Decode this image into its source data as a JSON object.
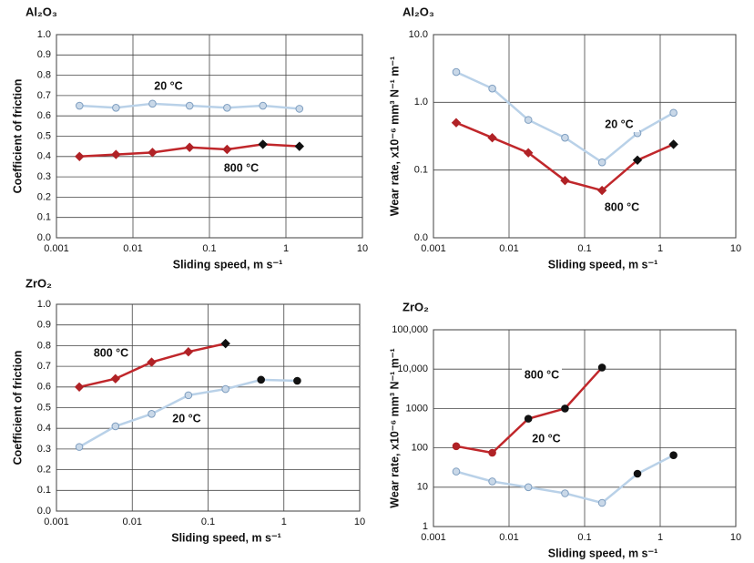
{
  "chart_data": [
    {
      "type": "line",
      "title": "Al₂O₃",
      "xlabel": "Sliding speed, m s⁻¹",
      "ylabel": "Coefficient of friction",
      "xlog": true,
      "ylog": false,
      "grid": true,
      "xlim": [
        0.001,
        10
      ],
      "xticks": [
        0.001,
        0.01,
        0.1,
        1,
        10
      ],
      "ylim": [
        0,
        1
      ],
      "yticks": [
        {
          "value": 0,
          "label": "0.0"
        },
        0.1,
        0.2,
        0.3,
        0.4,
        0.5,
        0.6,
        0.7,
        0.8,
        0.9,
        {
          "value": 1,
          "label": "1.0"
        }
      ],
      "series": [
        {
          "name": "20 °C",
          "color": "#b9d1e8",
          "marker": "circle",
          "x": [
            0.002,
            0.006,
            0.018,
            0.055,
            0.17,
            0.5,
            1.5
          ],
          "values": [
            0.65,
            0.64,
            0.66,
            0.65,
            0.64,
            0.65,
            0.635
          ],
          "marker_colors": [
            "#c9d8e8",
            "#c9d8e8",
            "#c9d8e8",
            "#c9d8e8",
            "#c9d8e8",
            "#c9d8e8",
            "#c9d8e8"
          ]
        },
        {
          "name": "800 °C",
          "color": "#c0272b",
          "marker": "diamond",
          "x": [
            0.002,
            0.006,
            0.018,
            0.055,
            0.17,
            0.5,
            1.5
          ],
          "values": [
            0.4,
            0.41,
            0.42,
            0.445,
            0.435,
            0.46,
            0.45
          ],
          "marker_colors": [
            "#b02226",
            "#b02226",
            "#b02226",
            "#b02226",
            "#b02226",
            "#111111",
            "#111111"
          ]
        }
      ]
    },
    {
      "type": "line",
      "title": "Al₂O₃",
      "xlabel": "Sliding speed, m s⁻¹",
      "ylabel": "Wear rate, x10⁻⁶ mm³ N⁻¹ m⁻¹",
      "xlog": true,
      "ylog": true,
      "grid": true,
      "xlim": [
        0.001,
        10
      ],
      "xticks": [
        0.001,
        0.01,
        0.1,
        1,
        10
      ],
      "ylim": [
        0.01,
        10
      ],
      "yticks": [
        {
          "value": 0.01,
          "label": "0.0"
        },
        0.1,
        {
          "value": 1,
          "label": "1.0"
        },
        {
          "value": 10,
          "label": "10.0"
        }
      ],
      "series": [
        {
          "name": "20 °C",
          "color": "#b9d1e8",
          "marker": "circle",
          "x": [
            0.002,
            0.006,
            0.018,
            0.055,
            0.17,
            0.5,
            1.5
          ],
          "values": [
            2.8,
            1.6,
            0.55,
            0.3,
            0.13,
            0.35,
            0.7
          ],
          "marker_colors": [
            "#c9d8e8",
            "#c9d8e8",
            "#c9d8e8",
            "#c9d8e8",
            "#c9d8e8",
            "#c9d8e8",
            "#c9d8e8"
          ]
        },
        {
          "name": "800 °C",
          "color": "#c0272b",
          "marker": "diamond",
          "x": [
            0.002,
            0.006,
            0.018,
            0.055,
            0.17,
            0.5,
            1.5
          ],
          "values": [
            0.5,
            0.3,
            0.18,
            0.07,
            0.05,
            0.14,
            0.24
          ],
          "marker_colors": [
            "#b02226",
            "#b02226",
            "#b02226",
            "#b02226",
            "#b02226",
            "#111111",
            "#111111"
          ]
        }
      ]
    },
    {
      "type": "line",
      "title": "ZrO₂",
      "xlabel": "Sliding speed, m s⁻¹",
      "ylabel": "Coefficient of friction",
      "xlog": true,
      "ylog": false,
      "grid": true,
      "xlim": [
        0.001,
        10
      ],
      "xticks": [
        0.001,
        0.01,
        0.1,
        1,
        10
      ],
      "ylim": [
        0,
        1
      ],
      "yticks": [
        {
          "value": 0,
          "label": "0.0"
        },
        0.1,
        0.2,
        0.3,
        0.4,
        0.5,
        0.6,
        0.7,
        0.8,
        0.9,
        {
          "value": 1,
          "label": "1.0"
        }
      ],
      "series": [
        {
          "name": "800 °C",
          "color": "#c0272b",
          "marker": "diamond",
          "x": [
            0.002,
            0.006,
            0.018,
            0.055,
            0.17
          ],
          "values": [
            0.6,
            0.64,
            0.72,
            0.77,
            0.81
          ],
          "marker_colors": [
            "#b02226",
            "#b02226",
            "#b02226",
            "#b02226",
            "#111111"
          ]
        },
        {
          "name": "20 °C",
          "color": "#b9d1e8",
          "marker": "circle",
          "x": [
            0.002,
            0.006,
            0.018,
            0.055,
            0.17,
            0.5,
            1.5
          ],
          "values": [
            0.31,
            0.41,
            0.47,
            0.56,
            0.59,
            0.635,
            0.63
          ],
          "marker_colors": [
            "#c9d8e8",
            "#c9d8e8",
            "#c9d8e8",
            "#c9d8e8",
            "#c9d8e8",
            "#111111",
            "#111111"
          ]
        }
      ]
    },
    {
      "type": "line",
      "title": "ZrO₂",
      "xlabel": "Sliding speed, m s⁻¹",
      "ylabel": "Wear rate, x10⁻⁶ mm³ N⁻¹ m⁻¹",
      "xlog": true,
      "ylog": true,
      "grid": true,
      "xlim": [
        0.001,
        10
      ],
      "xticks": [
        0.001,
        0.01,
        0.1,
        1,
        10
      ],
      "ylim": [
        1,
        100000
      ],
      "yticks": [
        1,
        10,
        100,
        1000,
        {
          "value": 10000,
          "label": "10,000"
        },
        {
          "value": 100000,
          "label": "100,000"
        }
      ],
      "series": [
        {
          "name": "800 °C",
          "color": "#c0272b",
          "marker": "circle",
          "x": [
            0.002,
            0.006,
            0.018,
            0.055,
            0.17
          ],
          "values": [
            110,
            75,
            550,
            1000,
            11000
          ],
          "marker_colors": [
            "#b02226",
            "#b02226",
            "#111111",
            "#111111",
            "#111111"
          ]
        },
        {
          "name": "20 °C",
          "color": "#b9d1e8",
          "marker": "circle",
          "x": [
            0.002,
            0.006,
            0.018,
            0.055,
            0.17,
            0.5,
            1.5
          ],
          "values": [
            25,
            14,
            10,
            7,
            4,
            22,
            65
          ],
          "marker_colors": [
            "#c9d8e8",
            "#c9d8e8",
            "#c9d8e8",
            "#c9d8e8",
            "#c9d8e8",
            "#111111",
            "#111111"
          ]
        }
      ]
    }
  ]
}
